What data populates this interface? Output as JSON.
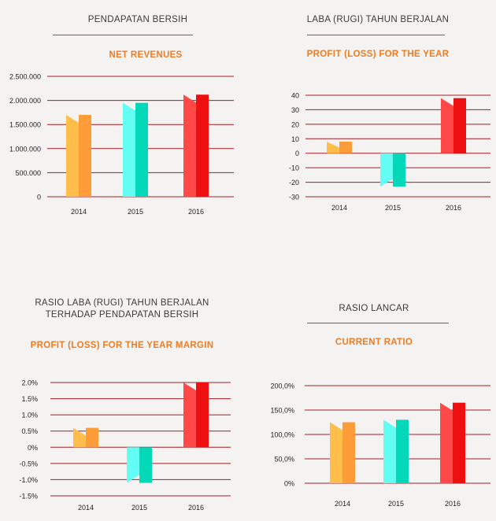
{
  "colors": {
    "grid": "#a51d24",
    "y2014_front": "#ffbd4a",
    "y2014_side": "#ff9c3a",
    "y2015_front": "#63fdf4",
    "y2015_side": "#03d8b9",
    "y2016_front": "#ff4949",
    "y2016_side": "#ee1010"
  },
  "chart_data": [
    {
      "type": "bar",
      "title": "PENDAPATAN BERSIH",
      "subtitle": "NET REVENUES",
      "categories": [
        "2014",
        "2015",
        "2016"
      ],
      "values": [
        1700000,
        1950000,
        2120000
      ],
      "yticks": [
        "2.500.000",
        "2.000.000",
        "1.500.000",
        "1.000.000",
        "500.000",
        "0"
      ],
      "ytick_values": [
        2500000,
        2000000,
        1500000,
        1000000,
        500000,
        0
      ],
      "ylim": [
        0,
        2500000
      ]
    },
    {
      "type": "bar",
      "title": "LABA (RUGI) TAHUN BERJALAN",
      "subtitle": "PROFIT (LOSS) FOR THE YEAR",
      "categories": [
        "2014",
        "2015",
        "2016"
      ],
      "values": [
        8,
        -23,
        38
      ],
      "yticks": [
        "40",
        "30",
        "20",
        "10",
        "0",
        "-10",
        "-20",
        "-30"
      ],
      "ytick_values": [
        40,
        30,
        20,
        10,
        0,
        -10,
        -20,
        -30
      ],
      "ylim": [
        -30,
        40
      ]
    },
    {
      "type": "bar",
      "title": "RASIO LABA (RUGI) TAHUN BERJALAN TERHADAP PENDAPATAN BERSIH",
      "title_lines": [
        "RASIO LABA (RUGI) TAHUN BERJALAN",
        "TERHADAP PENDAPATAN BERSIH"
      ],
      "subtitle": "PROFIT (LOSS) FOR THE YEAR MARGIN",
      "categories": [
        "2014",
        "2015",
        "2016"
      ],
      "values": [
        0.6,
        -1.1,
        2.0
      ],
      "yticks": [
        "2.0%",
        "1.5%",
        "1.0%",
        "0.5%",
        "0%",
        "-0.5%",
        "-1.0%",
        "-1.5%"
      ],
      "ytick_values": [
        2.0,
        1.5,
        1.0,
        0.5,
        0,
        -0.5,
        -1.0,
        -1.5
      ],
      "ylim": [
        -1.5,
        2.0
      ]
    },
    {
      "type": "bar",
      "title": "RASIO LANCAR",
      "subtitle": "CURRENT RATIO",
      "categories": [
        "2014",
        "2015",
        "2016"
      ],
      "values": [
        125,
        130,
        165
      ],
      "yticks": [
        "200,0%",
        "150,0%",
        "100,0%",
        "50,0%",
        "0%"
      ],
      "ytick_values": [
        200,
        150,
        100,
        50,
        0
      ],
      "ylim": [
        0,
        200
      ]
    }
  ]
}
